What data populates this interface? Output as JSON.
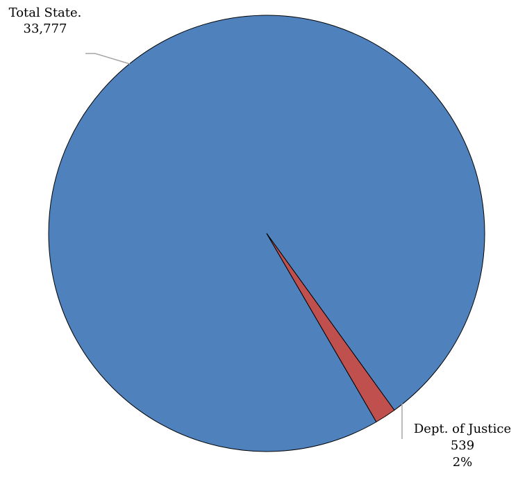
{
  "chart_data": {
    "type": "pie",
    "title": "",
    "slices": [
      {
        "label_lines": [
          "Total State.",
          "33,777"
        ],
        "value": 33777,
        "color": "#4F81BD"
      },
      {
        "label_lines": [
          "Dept. of Justice",
          "539",
          "2%"
        ],
        "value": 539,
        "color": "#C0504D"
      }
    ],
    "legend": "none",
    "slice_border_color": "#000000",
    "leader_line_color": "#A6A6A6"
  }
}
